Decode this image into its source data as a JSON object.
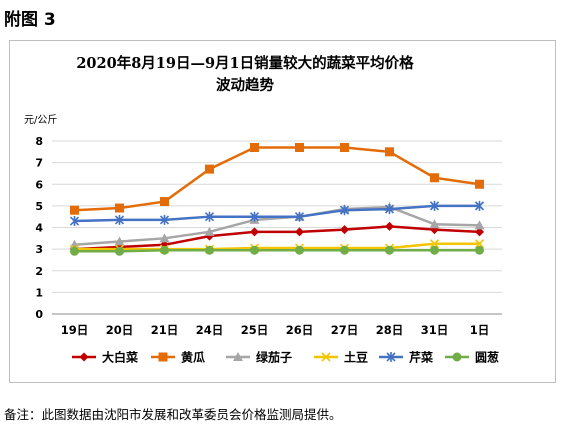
{
  "heading": "附图 3",
  "note": "备注：此图数据由沈阳市发展和改革委员会价格监测局提供。",
  "colors": {
    "大白菜": "#c00000",
    "黄瓜": "#e36c09",
    "绿茄子": "#a6a6a6",
    "土豆": "#f5c400",
    "芹菜": "#4472c4",
    "圆葱": "#70ad47"
  },
  "chart_data": {
    "type": "line",
    "title_lines": [
      "2020年8月19日—9月1日销量较大的蔬菜平均价格",
      "波动趋势"
    ],
    "ylabel": "元/公斤",
    "xlabel": "",
    "ylim": [
      0,
      8
    ],
    "yticks": [
      0,
      1,
      2,
      3,
      4,
      5,
      6,
      7,
      8
    ],
    "grid": true,
    "legend_position": "bottom",
    "categories": [
      "19日",
      "20日",
      "21日",
      "24日",
      "25日",
      "26日",
      "27日",
      "28日",
      "31日",
      "1日"
    ],
    "series": [
      {
        "name": "大白菜",
        "marker": "diamond",
        "color": "#c00000",
        "values": [
          3.0,
          3.1,
          3.2,
          3.6,
          3.8,
          3.8,
          3.9,
          4.05,
          3.9,
          3.8
        ]
      },
      {
        "name": "黄瓜",
        "marker": "square",
        "color": "#e36c09",
        "values": [
          4.8,
          4.9,
          5.2,
          6.7,
          7.7,
          7.7,
          7.7,
          7.5,
          6.3,
          6.0
        ]
      },
      {
        "name": "绿茄子",
        "marker": "triangle",
        "color": "#a6a6a6",
        "values": [
          3.2,
          3.35,
          3.5,
          3.8,
          4.35,
          4.5,
          4.85,
          4.95,
          4.15,
          4.1
        ]
      },
      {
        "name": "土豆",
        "marker": "x",
        "color": "#f5c400",
        "values": [
          3.0,
          3.0,
          3.0,
          3.0,
          3.05,
          3.05,
          3.05,
          3.05,
          3.25,
          3.25
        ]
      },
      {
        "name": "芹菜",
        "marker": "star",
        "color": "#4472c4",
        "values": [
          4.3,
          4.35,
          4.35,
          4.5,
          4.5,
          4.5,
          4.8,
          4.85,
          5.0,
          5.0
        ]
      },
      {
        "name": "圆葱",
        "marker": "circle",
        "color": "#70ad47",
        "values": [
          2.9,
          2.9,
          2.95,
          2.95,
          2.95,
          2.95,
          2.95,
          2.95,
          2.95,
          2.95
        ]
      }
    ]
  }
}
